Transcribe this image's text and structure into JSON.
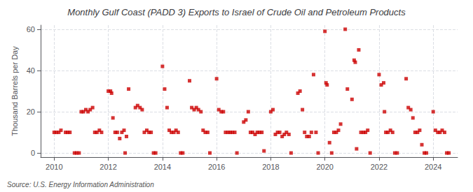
{
  "chart_data": {
    "type": "scatter",
    "title": "Monthly Gulf Coast (PADD 3) Exports to Israel of Crude Oil and Petroleum Products",
    "ylabel": "Thousand Barrels per Day",
    "annotations": [
      "Source: U.S. Energy Information Administration"
    ],
    "color": "#cc0000",
    "marker": "square",
    "grid": true,
    "xlim": [
      2009.5,
      2024.9
    ],
    "xticks": [
      2010,
      2012,
      2014,
      2016,
      2018,
      2020,
      2022,
      2024
    ],
    "ylim": [
      -2,
      62
    ],
    "yticks": [
      0,
      20,
      40,
      60
    ],
    "x": [
      2010.0,
      2010.08,
      2010.17,
      2010.25,
      2010.42,
      2010.5,
      2010.58,
      2010.75,
      2010.83,
      2010.92,
      2011.0,
      2011.08,
      2011.17,
      2011.25,
      2011.33,
      2011.42,
      2011.5,
      2011.58,
      2011.67,
      2011.75,
      2012.0,
      2012.08,
      2012.12,
      2012.17,
      2012.25,
      2012.33,
      2012.42,
      2012.5,
      2012.58,
      2012.62,
      2012.67,
      2012.75,
      2013.0,
      2013.08,
      2013.17,
      2013.25,
      2013.33,
      2013.42,
      2013.5,
      2013.58,
      2013.67,
      2013.75,
      2014.0,
      2014.08,
      2014.17,
      2014.25,
      2014.33,
      2014.42,
      2014.5,
      2014.58,
      2014.67,
      2014.75,
      2015.0,
      2015.08,
      2015.17,
      2015.25,
      2015.33,
      2015.42,
      2015.5,
      2015.58,
      2015.67,
      2015.75,
      2016.0,
      2016.08,
      2016.17,
      2016.25,
      2016.33,
      2016.42,
      2016.5,
      2016.58,
      2016.67,
      2016.75,
      2017.0,
      2017.08,
      2017.17,
      2017.25,
      2017.33,
      2017.42,
      2017.5,
      2017.58,
      2017.67,
      2017.75,
      2018.0,
      2018.08,
      2018.17,
      2018.25,
      2018.33,
      2018.42,
      2018.5,
      2018.58,
      2018.67,
      2018.75,
      2019.0,
      2019.08,
      2019.17,
      2019.25,
      2019.33,
      2019.42,
      2019.5,
      2019.58,
      2019.67,
      2019.75,
      2020.0,
      2020.04,
      2020.08,
      2020.17,
      2020.25,
      2020.33,
      2020.42,
      2020.5,
      2020.58,
      2020.75,
      2020.83,
      2021.0,
      2021.08,
      2021.12,
      2021.17,
      2021.25,
      2021.33,
      2021.42,
      2021.5,
      2021.58,
      2021.67,
      2022.0,
      2022.08,
      2022.17,
      2022.2,
      2022.25,
      2022.33,
      2022.42,
      2022.5,
      2022.58,
      2022.67,
      2023.0,
      2023.08,
      2023.17,
      2023.25,
      2023.33,
      2023.42,
      2023.5,
      2023.58,
      2023.67,
      2023.75,
      2024.0,
      2024.08,
      2024.17,
      2024.25,
      2024.33,
      2024.42,
      2024.5,
      2024.58
    ],
    "values": [
      10,
      10,
      10,
      11,
      10,
      10,
      10,
      0,
      0,
      0,
      20,
      20,
      21,
      20,
      21,
      22,
      10,
      10,
      11,
      10,
      30,
      30,
      29,
      17,
      10,
      10,
      7,
      10,
      11,
      0,
      8,
      31,
      22,
      23,
      22,
      21,
      10,
      11,
      10,
      10,
      0,
      0,
      42,
      31,
      22,
      11,
      10,
      10,
      11,
      10,
      0,
      0,
      35,
      22,
      21,
      22,
      21,
      20,
      11,
      10,
      10,
      0,
      36,
      21,
      20,
      20,
      10,
      10,
      10,
      10,
      10,
      0,
      15,
      16,
      20,
      10,
      10,
      9,
      10,
      10,
      10,
      1,
      20,
      21,
      9,
      10,
      10,
      8,
      9,
      10,
      9,
      0,
      29,
      30,
      21,
      10,
      8,
      8,
      10,
      38,
      10,
      0,
      59,
      34,
      33,
      5,
      0,
      10,
      10,
      11,
      14,
      60,
      31,
      26,
      45,
      44,
      2,
      50,
      10,
      10,
      10,
      11,
      0,
      38,
      33,
      34,
      20,
      10,
      10,
      11,
      10,
      0,
      0,
      36,
      22,
      21,
      17,
      10,
      10,
      11,
      4,
      0,
      0,
      20,
      11,
      10,
      10,
      11,
      10,
      0,
      0
    ]
  }
}
